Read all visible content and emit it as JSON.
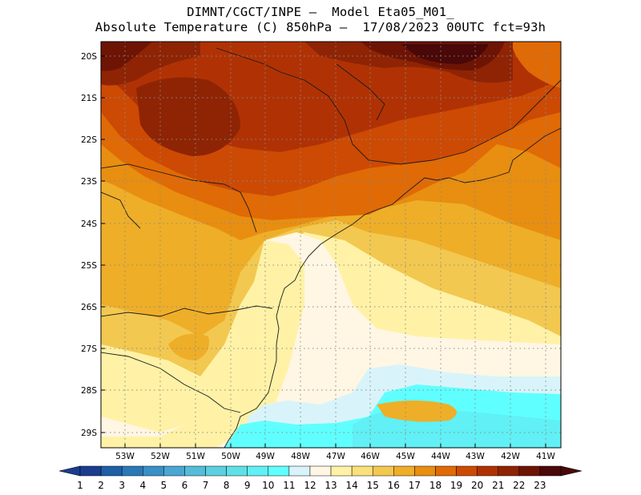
{
  "header": {
    "line1": "DIMNT/CGCT/INPE –  Model Eta05_M01_",
    "line2": "Absolute Temperature (C) 850hPa –  17/08/2023 00UTC fct=93h"
  },
  "map": {
    "lat_labels": [
      "20S",
      "21S",
      "22S",
      "23S",
      "24S",
      "25S",
      "26S",
      "27S",
      "28S",
      "29S"
    ],
    "lon_labels": [
      "53W",
      "52W",
      "51W",
      "50W",
      "49W",
      "48W",
      "47W",
      "46W",
      "45W",
      "44W",
      "43W",
      "42W",
      "41W"
    ]
  },
  "colorbar": {
    "labels": [
      "1",
      "2",
      "3",
      "4",
      "5",
      "6",
      "7",
      "8",
      "9",
      "10",
      "11",
      "12",
      "13",
      "14",
      "15",
      "16",
      "17",
      "18",
      "19",
      "20",
      "21",
      "22",
      "23"
    ],
    "colors": [
      "#1a3d8f",
      "#1e5fa6",
      "#2a78b8",
      "#3a8fc6",
      "#4aa6d2",
      "#54bcd9",
      "#5ccfe0",
      "#5fe0e8",
      "#60f0f5",
      "#60ffff",
      "#d8f4fa",
      "#fff6e4",
      "#fff2a6",
      "#fae07a",
      "#f2c850",
      "#eeae28",
      "#e88e10",
      "#e06a06",
      "#cc4a04",
      "#b03204",
      "#8e2404",
      "#6e1404",
      "#4a0808"
    ]
  }
}
